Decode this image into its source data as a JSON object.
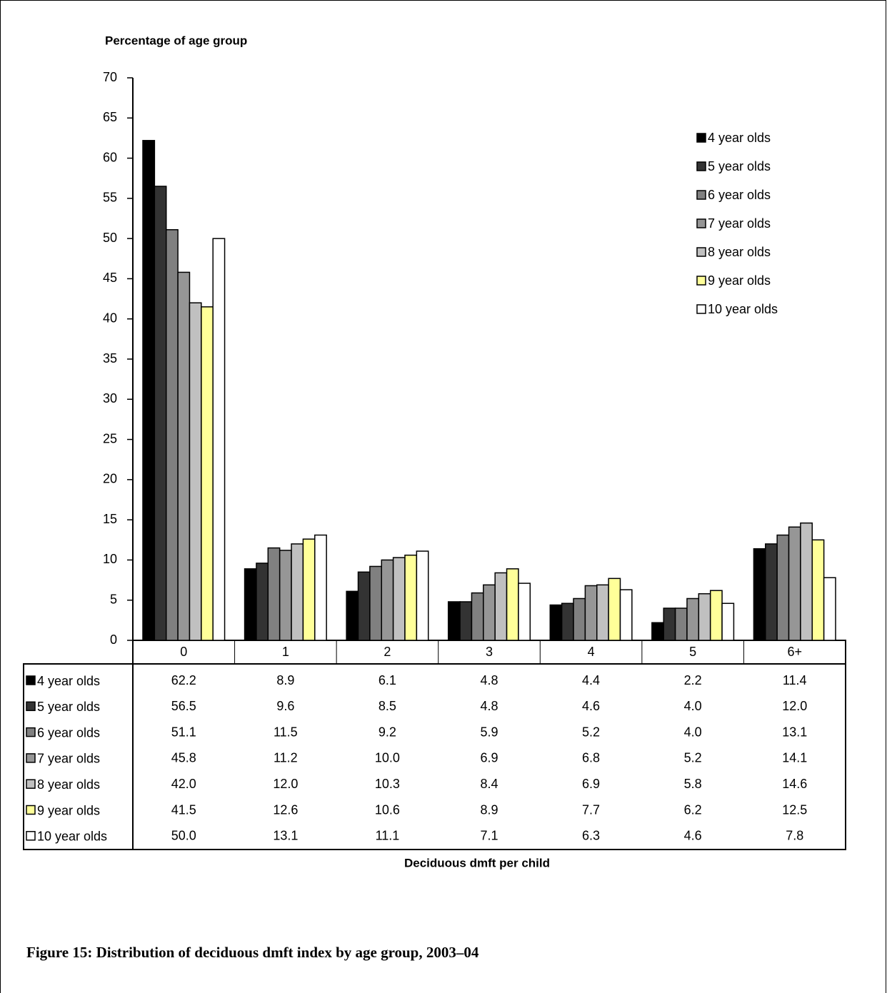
{
  "chart_data": {
    "type": "bar",
    "y_label": "Percentage of age group",
    "x_label": "Deciduous dmft per child",
    "caption": "Figure 15: Distribution of deciduous dmft index by age group, 2003–04",
    "categories": [
      "0",
      "1",
      "2",
      "3",
      "4",
      "5",
      "6+"
    ],
    "ylim": [
      0,
      70
    ],
    "yticks": [
      0,
      5,
      10,
      15,
      20,
      25,
      30,
      35,
      40,
      45,
      50,
      55,
      60,
      65,
      70
    ],
    "legend": "upper-right",
    "series": [
      {
        "name": "4 year olds",
        "color": "#000000",
        "values": [
          62.2,
          8.9,
          6.1,
          4.8,
          4.4,
          2.2,
          11.4
        ],
        "value_labels": [
          "62.2",
          "8.9",
          "6.1",
          "4.8",
          "4.4",
          "2.2",
          "11.4"
        ]
      },
      {
        "name": "5 year olds",
        "color": "#333333",
        "values": [
          56.5,
          9.6,
          8.5,
          4.8,
          4.6,
          4,
          12
        ],
        "value_labels": [
          "56.5",
          "9.6",
          "8.5",
          "4.8",
          "4.6",
          "4.0",
          "12.0"
        ]
      },
      {
        "name": "6 year olds",
        "color": "#808080",
        "values": [
          51.1,
          11.5,
          9.2,
          5.9,
          5.2,
          4,
          13.1
        ],
        "value_labels": [
          "51.1",
          "11.5",
          "9.2",
          "5.9",
          "5.2",
          "4.0",
          "13.1"
        ]
      },
      {
        "name": "7 year olds",
        "color": "#969696",
        "values": [
          45.8,
          11.2,
          10,
          6.9,
          6.8,
          5.2,
          14.1
        ],
        "value_labels": [
          "45.8",
          "11.2",
          "10.0",
          "6.9",
          "6.8",
          "5.2",
          "14.1"
        ]
      },
      {
        "name": "8 year olds",
        "color": "#c0c0c0",
        "values": [
          42,
          12,
          10.3,
          8.4,
          6.9,
          5.8,
          14.6
        ],
        "value_labels": [
          "42.0",
          "12.0",
          "10.3",
          "8.4",
          "6.9",
          "5.8",
          "14.6"
        ]
      },
      {
        "name": "9 year olds",
        "color": "#ffff99",
        "values": [
          41.5,
          12.6,
          10.6,
          8.9,
          7.7,
          6.2,
          12.5
        ],
        "value_labels": [
          "41.5",
          "12.6",
          "10.6",
          "8.9",
          "7.7",
          "6.2",
          "12.5"
        ]
      },
      {
        "name": "10 year olds",
        "color": "#ffffff",
        "values": [
          50,
          13.1,
          11.1,
          7.1,
          6.3,
          4.6,
          7.8
        ],
        "value_labels": [
          "50.0",
          "13.1",
          "11.1",
          "7.1",
          "6.3",
          "4.6",
          "7.8"
        ]
      }
    ]
  }
}
